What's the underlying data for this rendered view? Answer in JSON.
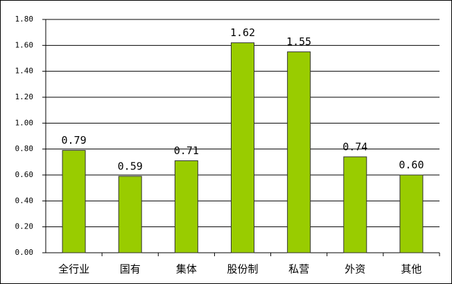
{
  "chart_data": {
    "type": "bar",
    "categories": [
      "全行业",
      "国有",
      "集体",
      "股份制",
      "私营",
      "外资",
      "其他"
    ],
    "values": [
      0.79,
      0.59,
      0.71,
      1.62,
      1.55,
      0.74,
      0.6
    ],
    "value_labels": [
      "0.79",
      "0.59",
      "0.71",
      "1.62",
      "1.55",
      "0.74",
      "0.60"
    ],
    "color": "#99cc00",
    "ylim": [
      0,
      1.8
    ],
    "yticks": [
      {
        "value": 0,
        "label": "0.00"
      },
      {
        "value": 0.2,
        "label": "0.20"
      },
      {
        "value": 0.4,
        "label": "0.40"
      },
      {
        "value": 0.6,
        "label": "0.60"
      },
      {
        "value": 0.8,
        "label": "0.80"
      },
      {
        "value": 1.0,
        "label": "1.00"
      },
      {
        "value": 1.2,
        "label": "1.20"
      },
      {
        "value": 1.4,
        "label": "1.40"
      },
      {
        "value": 1.6,
        "label": "1.60"
      },
      {
        "value": 1.8,
        "label": "1.80"
      }
    ],
    "grid": true
  }
}
